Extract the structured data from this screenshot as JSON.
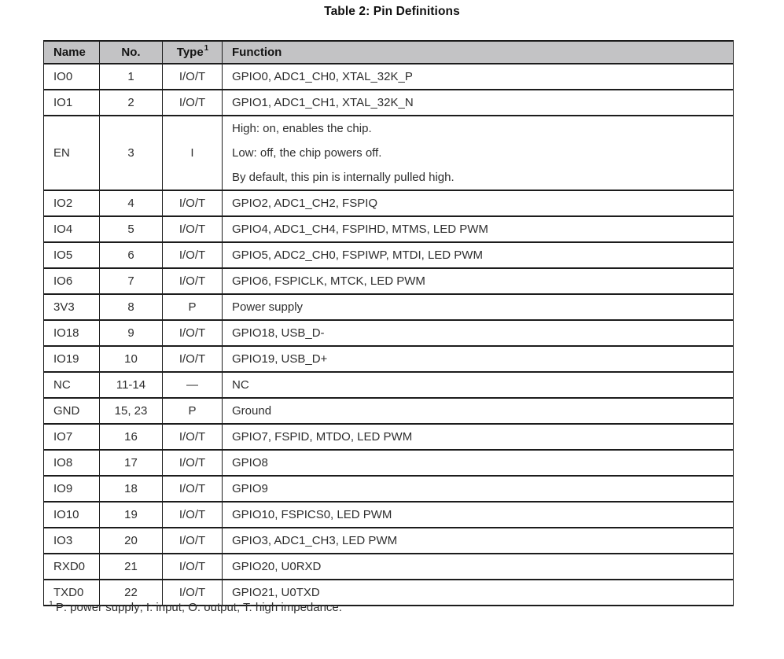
{
  "title": "Table 2: Pin Definitions",
  "table": {
    "headers": {
      "name": "Name",
      "no": "No.",
      "type": "Type",
      "type_sup": "1",
      "function": "Function"
    },
    "rows": [
      {
        "name": "IO0",
        "no": "1",
        "type": "I/O/T",
        "function": [
          "GPIO0, ADC1_CH0, XTAL_32K_P"
        ]
      },
      {
        "name": "IO1",
        "no": "2",
        "type": "I/O/T",
        "function": [
          "GPIO1, ADC1_CH1, XTAL_32K_N"
        ]
      },
      {
        "name": "EN",
        "no": "3",
        "type": "I",
        "function": [
          "High: on, enables the chip.",
          "Low: off, the chip powers off.",
          "By default, this pin is internally pulled high."
        ]
      },
      {
        "name": "IO2",
        "no": "4",
        "type": "I/O/T",
        "function": [
          "GPIO2, ADC1_CH2, FSPIQ"
        ]
      },
      {
        "name": "IO4",
        "no": "5",
        "type": "I/O/T",
        "function": [
          "GPIO4, ADC1_CH4, FSPIHD, MTMS, LED PWM"
        ]
      },
      {
        "name": "IO5",
        "no": "6",
        "type": "I/O/T",
        "function": [
          "GPIO5, ADC2_CH0, FSPIWP, MTDI, LED PWM"
        ]
      },
      {
        "name": "IO6",
        "no": "7",
        "type": "I/O/T",
        "function": [
          "GPIO6, FSPICLK, MTCK, LED PWM"
        ]
      },
      {
        "name": "3V3",
        "no": "8",
        "type": "P",
        "function": [
          "Power supply"
        ]
      },
      {
        "name": "IO18",
        "no": "9",
        "type": "I/O/T",
        "function": [
          "GPIO18, USB_D-"
        ]
      },
      {
        "name": "IO19",
        "no": "10",
        "type": "I/O/T",
        "function": [
          "GPIO19, USB_D+"
        ]
      },
      {
        "name": "NC",
        "no": "11-14",
        "type": "—",
        "function": [
          "NC"
        ]
      },
      {
        "name": "GND",
        "no": "15, 23",
        "type": "P",
        "function": [
          "Ground"
        ]
      },
      {
        "name": "IO7",
        "no": "16",
        "type": "I/O/T",
        "function": [
          "GPIO7, FSPID, MTDO, LED PWM"
        ]
      },
      {
        "name": "IO8",
        "no": "17",
        "type": "I/O/T",
        "function": [
          "GPIO8"
        ]
      },
      {
        "name": "IO9",
        "no": "18",
        "type": "I/O/T",
        "function": [
          "GPIO9"
        ]
      },
      {
        "name": "IO10",
        "no": "19",
        "type": "I/O/T",
        "function": [
          "GPIO10, FSPICS0, LED PWM"
        ]
      },
      {
        "name": "IO3",
        "no": "20",
        "type": "I/O/T",
        "function": [
          "GPIO3, ADC1_CH3, LED PWM"
        ]
      },
      {
        "name": "RXD0",
        "no": "21",
        "type": "I/O/T",
        "function": [
          "GPIO20, U0RXD"
        ]
      },
      {
        "name": "TXD0",
        "no": "22",
        "type": "I/O/T",
        "function": [
          "GPIO21, U0TXD"
        ]
      }
    ]
  },
  "footnote": {
    "marker": "1",
    "text": "P: power supply; I: input; O: output; T: high impedance."
  },
  "colors": {
    "header_bg": "#c3c3c5",
    "border": "#1c1c1c",
    "text": "#2e2e2e"
  }
}
